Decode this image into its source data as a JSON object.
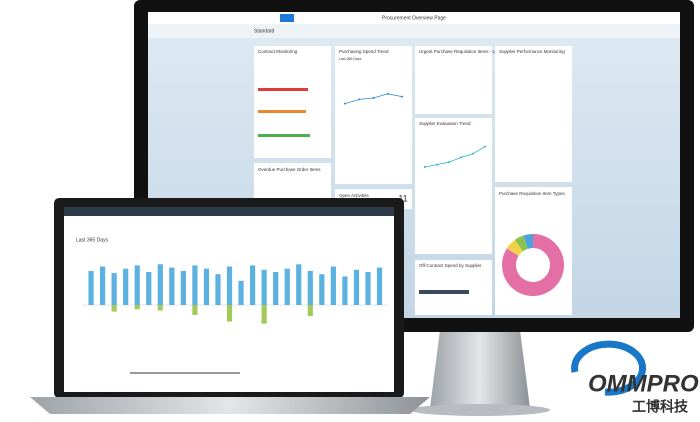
{
  "monitor": {
    "app_title": "Procurement Overview Page",
    "variant": "Standard",
    "cards": {
      "contract": {
        "title": "Contract Monitoring"
      },
      "spend": {
        "title": "Purchasing Spend Trend",
        "subtitle": "Last 365 Days",
        "values": [
          52,
          58,
          60,
          66,
          62
        ]
      },
      "urgent": {
        "title": "Urgent Purchase Requisition Items - Unsourced"
      },
      "supplier": {
        "title": "Supplier Performance Monitoring"
      },
      "evaluation": {
        "title": "Supplier Evaluation Trend",
        "values": [
          30,
          34,
          38,
          46,
          52,
          64
        ]
      },
      "overdue": {
        "title": "Overdue Purchase Order Items"
      },
      "activities": {
        "title": "Open Activities",
        "count": "11"
      },
      "offcontract": {
        "title": "Off-Contract Spend by Supplier"
      },
      "types": {
        "title": "Purchase Requisition Item Types",
        "values": [
          84,
          6,
          5,
          5
        ],
        "colors": [
          "#e46fa4",
          "#f0d24a",
          "#8bc34a",
          "#4aa3df"
        ]
      }
    }
  },
  "laptop": {
    "title": "Last 365 Days",
    "positive": [
      62,
      70,
      58,
      66,
      72,
      60,
      74,
      68,
      62,
      72,
      66,
      56,
      70,
      44,
      72,
      64,
      60,
      66,
      74,
      62,
      56,
      70,
      52,
      64,
      60,
      68
    ],
    "negative": [
      null,
      null,
      -12,
      null,
      -8,
      null,
      -10,
      null,
      null,
      -18,
      null,
      null,
      -30,
      null,
      null,
      -34,
      null,
      null,
      null,
      -20,
      null,
      null,
      null,
      null,
      null,
      null
    ]
  },
  "logo": {
    "name": "OMMPRO",
    "tagline": "工博科技"
  }
}
